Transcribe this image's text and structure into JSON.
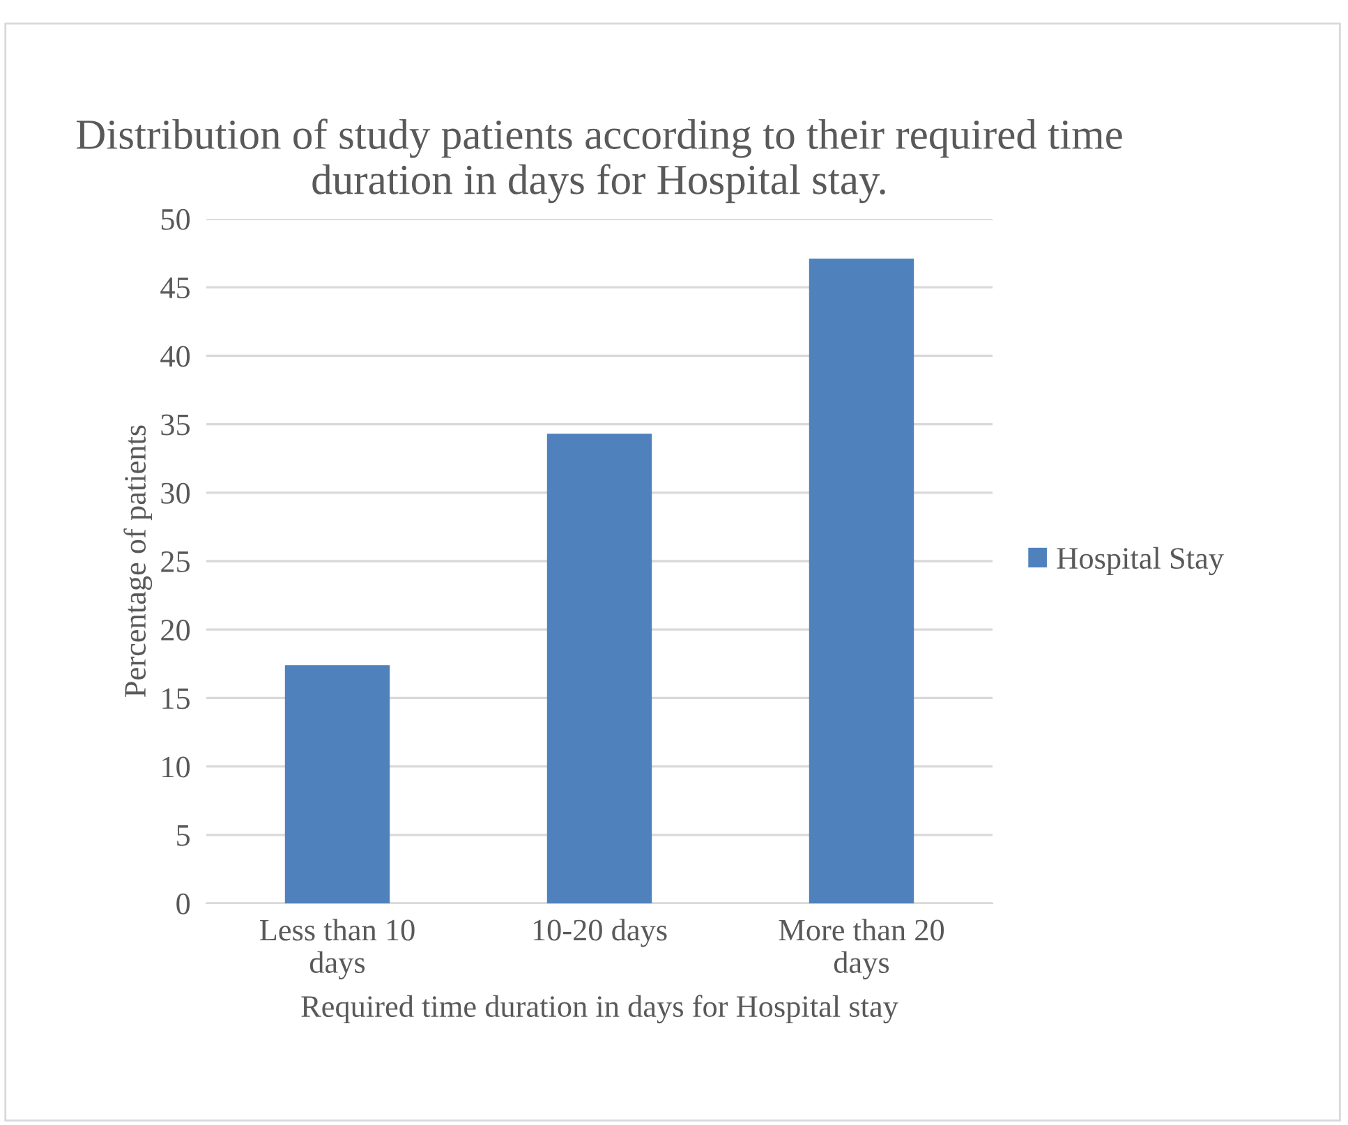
{
  "chart_data": {
    "type": "bar",
    "title": "Distribution of study patients according to their required time duration in days for Hospital stay.",
    "xlabel": "Required time duration in days for Hospital stay",
    "ylabel": "Percentage of patients",
    "categories": [
      "Less than 10\ndays",
      "10-20 days",
      "More than 20\ndays"
    ],
    "series": [
      {
        "name": "Hospital Stay",
        "color": "#4f81bd",
        "values": [
          17.4,
          34.3,
          47.1
        ]
      }
    ],
    "ylim": [
      0,
      50
    ],
    "yticks": [
      0,
      5,
      10,
      15,
      20,
      25,
      30,
      35,
      40,
      45,
      50
    ],
    "grid": "y",
    "legend": "right"
  }
}
